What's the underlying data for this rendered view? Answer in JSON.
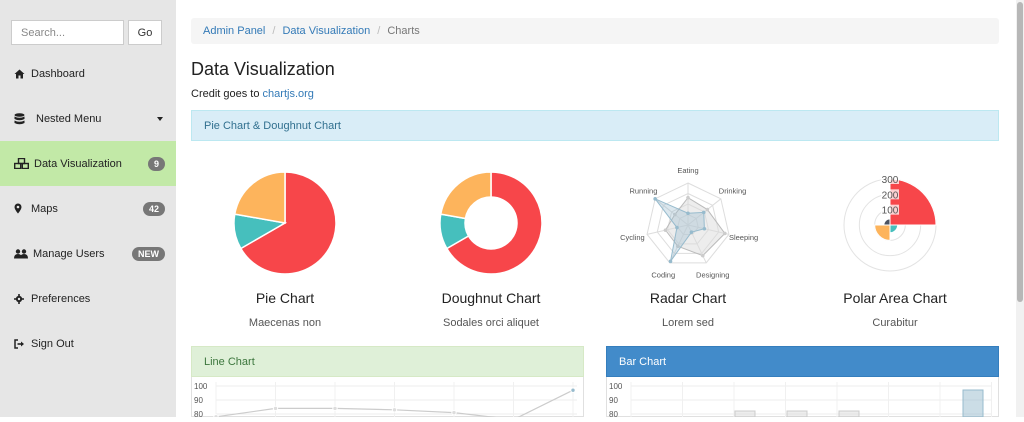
{
  "search": {
    "placeholder": "Search...",
    "button": "Go"
  },
  "nav": [
    {
      "label": "Dashboard",
      "icon": "home-icon"
    },
    {
      "label": "Nested Menu",
      "icon": "database-icon"
    },
    {
      "label": "Data Visualization",
      "icon": "cubes-icon",
      "badge": "9"
    },
    {
      "label": "Maps",
      "icon": "map-marker-icon",
      "badge": "42"
    },
    {
      "label": "Manage Users",
      "icon": "users-icon",
      "badge": "NEW"
    },
    {
      "label": "Preferences",
      "icon": "gear-icon"
    },
    {
      "label": "Sign Out",
      "icon": "sign-out-icon"
    }
  ],
  "breadcrumb": {
    "item1": "Admin Panel",
    "item2": "Data Visualization",
    "current": "Charts"
  },
  "page": {
    "title": "Data Visualization",
    "credit_prefix": "Credit goes to ",
    "credit_link": "chartjs.org"
  },
  "panels": {
    "pie": "Pie Chart & Doughnut Chart",
    "line": "Line Chart",
    "bar": "Bar Chart"
  },
  "colors": {
    "red": "#f7464a",
    "teal": "#46bfbd",
    "orange": "#fdb45c",
    "dark": "#4d5360",
    "accent": "#337ab7",
    "active_nav": "#c2e9a7"
  },
  "chart_data": [
    {
      "type": "pie",
      "caption": "Pie Chart",
      "subcaption": "Maecenas non",
      "values": [
        300,
        50,
        100
      ],
      "colors": [
        "#f7464a",
        "#46bfbd",
        "#fdb45c"
      ]
    },
    {
      "type": "pie",
      "variant": "doughnut",
      "caption": "Doughnut Chart",
      "subcaption": "Sodales orci aliquet",
      "values": [
        300,
        50,
        100
      ],
      "colors": [
        "#f7464a",
        "#46bfbd",
        "#fdb45c"
      ]
    },
    {
      "type": "radar",
      "caption": "Radar Chart",
      "subcaption": "Lorem sed",
      "categories": [
        "Eating",
        "Drinking",
        "Sleeping",
        "Designing",
        "Coding",
        "Cycling",
        "Running"
      ],
      "series": [
        {
          "values": [
            65,
            59,
            90,
            81,
            56,
            55,
            40
          ]
        },
        {
          "values": [
            28,
            48,
            40,
            19,
            96,
            27,
            100
          ]
        }
      ],
      "max": 100
    },
    {
      "type": "polar",
      "caption": "Polar Area Chart",
      "subcaption": "Curabitur",
      "values": [
        300,
        50,
        100,
        40
      ],
      "colors": [
        "#f7464a",
        "#46bfbd",
        "#fdb45c",
        "#4d5360"
      ],
      "ticks": [
        "300",
        "200",
        "100"
      ],
      "max": 300
    },
    {
      "type": "line",
      "y_ticks": [
        "100",
        "90",
        "80"
      ],
      "series": [
        {
          "values": [
            78,
            84,
            84,
            83,
            81,
            76,
            97
          ]
        }
      ]
    },
    {
      "type": "bar",
      "y_ticks": [
        "100",
        "90",
        "80"
      ]
    }
  ]
}
